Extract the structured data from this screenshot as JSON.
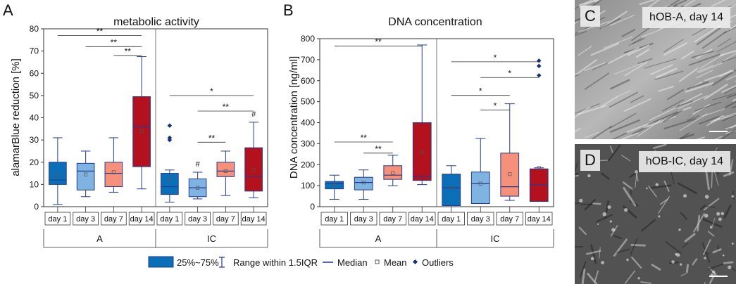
{
  "colors": {
    "day1": "#0b6fb8",
    "day3": "#7fb4e2",
    "day7": "#f5917a",
    "day14": "#b3111d",
    "whisker": "#243a8f",
    "outlier": "#17317c"
  },
  "legend": {
    "box_label": "25%~75%",
    "range_label": "Range within 1.5IQR",
    "median_label": "Median",
    "mean_label": "Mean",
    "outliers_label": "Outliers"
  },
  "microscopy": {
    "C": {
      "letter": "C",
      "label": "hOB-A, day 14"
    },
    "D": {
      "letter": "D",
      "label": "hOB-IC, day 14"
    }
  },
  "chart_data": [
    {
      "panel": "A",
      "type": "box",
      "title": "metabolic activity",
      "ylabel": "alamarBlue reduction [%]",
      "xlabel": "",
      "ylim": [
        0,
        80
      ],
      "yticks": [
        0,
        10,
        20,
        30,
        40,
        50,
        60,
        70,
        80
      ],
      "groups": [
        "A",
        "IC"
      ],
      "days": [
        "day 1",
        "day 3",
        "day 7",
        "day 14"
      ],
      "boxes": [
        {
          "group": 0,
          "day": 0,
          "q1": 10,
          "q3": 20,
          "median": 12,
          "mean": 14,
          "whisker_low": 1,
          "whisker_high": 31,
          "outliers": []
        },
        {
          "group": 0,
          "day": 1,
          "q1": 7.5,
          "q3": 19.5,
          "median": 16,
          "mean": 14.5,
          "whisker_low": 4.5,
          "whisker_high": 25,
          "outliers": []
        },
        {
          "group": 0,
          "day": 2,
          "q1": 9,
          "q3": 20,
          "median": 15,
          "mean": 15.5,
          "whisker_low": 6.5,
          "whisker_high": 31,
          "outliers": []
        },
        {
          "group": 0,
          "day": 3,
          "q1": 18,
          "q3": 49.5,
          "median": 36,
          "mean": 34,
          "whisker_low": 8,
          "whisker_high": 67.5,
          "outliers": []
        },
        {
          "group": 1,
          "day": 0,
          "q1": 5.5,
          "q3": 15,
          "median": 9,
          "mean": 12.5,
          "whisker_low": 2,
          "whisker_high": 16.5,
          "outliers": [
            36.5,
            31,
            30
          ]
        },
        {
          "group": 1,
          "day": 1,
          "q1": 4.5,
          "q3": 12.5,
          "median": 8.5,
          "mean": 8.5,
          "whisker_low": 3.5,
          "whisker_high": 15.5,
          "outliers": []
        },
        {
          "group": 1,
          "day": 2,
          "q1": 13.5,
          "q3": 20,
          "median": 16,
          "mean": 16,
          "whisker_low": 5,
          "whisker_high": 25,
          "outliers": []
        },
        {
          "group": 1,
          "day": 3,
          "q1": 7,
          "q3": 26.5,
          "median": 13.5,
          "mean": 16.5,
          "whisker_low": 4,
          "whisker_high": 38,
          "outliers": []
        }
      ],
      "significance": [
        {
          "from": [
            0,
            0
          ],
          "to": [
            0,
            3
          ],
          "y": 77,
          "label": "**"
        },
        {
          "from": [
            0,
            1
          ],
          "to": [
            0,
            3
          ],
          "y": 72,
          "label": "**"
        },
        {
          "from": [
            0,
            2
          ],
          "to": [
            0,
            3
          ],
          "y": 68,
          "label": "**"
        },
        {
          "from": [
            1,
            0
          ],
          "to": [
            1,
            3
          ],
          "y": 50,
          "label": "*"
        },
        {
          "from": [
            1,
            1
          ],
          "to": [
            1,
            3
          ],
          "y": 43,
          "label": "**"
        },
        {
          "from": [
            1,
            1
          ],
          "to": [
            1,
            2
          ],
          "y": 29,
          "label": "**"
        }
      ],
      "hash_marks": [
        {
          "group": 1,
          "day": 1,
          "y": 18,
          "label": "#"
        },
        {
          "group": 1,
          "day": 3,
          "y": 40.5,
          "label": "#"
        }
      ]
    },
    {
      "panel": "B",
      "type": "box",
      "title": "DNA concentration",
      "ylabel": "DNA concentration [ng/ml]",
      "xlabel": "",
      "ylim": [
        0,
        800
      ],
      "yticks": [
        0,
        100,
        200,
        300,
        400,
        500,
        600,
        700,
        800
      ],
      "groups": [
        "A",
        "IC"
      ],
      "days": [
        "day 1",
        "day 3",
        "day 7",
        "day 14"
      ],
      "boxes": [
        {
          "group": 0,
          "day": 0,
          "q1": 85,
          "q3": 120,
          "median": 110,
          "mean": 105,
          "whisker_low": 35,
          "whisker_high": 150,
          "outliers": []
        },
        {
          "group": 0,
          "day": 1,
          "q1": 80,
          "q3": 140,
          "median": 115,
          "mean": 115,
          "whisker_low": 35,
          "whisker_high": 175,
          "outliers": []
        },
        {
          "group": 0,
          "day": 2,
          "q1": 130,
          "q3": 195,
          "median": 150,
          "mean": 160,
          "whisker_low": 100,
          "whisker_high": 245,
          "outliers": []
        },
        {
          "group": 0,
          "day": 3,
          "q1": 125,
          "q3": 400,
          "median": 145,
          "mean": 260,
          "whisker_low": 105,
          "whisker_high": 770,
          "outliers": []
        },
        {
          "group": 1,
          "day": 0,
          "q1": 5,
          "q3": 155,
          "median": 90,
          "mean": 90,
          "whisker_low": 5,
          "whisker_high": 195,
          "outliers": []
        },
        {
          "group": 1,
          "day": 1,
          "q1": 15,
          "q3": 165,
          "median": 110,
          "mean": 110,
          "whisker_low": 15,
          "whisker_high": 325,
          "outliers": []
        },
        {
          "group": 1,
          "day": 2,
          "q1": 50,
          "q3": 255,
          "median": 95,
          "mean": 155,
          "whisker_low": 30,
          "whisker_high": 490,
          "outliers": []
        },
        {
          "group": 1,
          "day": 3,
          "q1": 25,
          "q3": 180,
          "median": 105,
          "mean": 185,
          "whisker_low": 25,
          "whisker_high": 185,
          "outliers": [
            695,
            670,
            625
          ]
        }
      ],
      "significance": [
        {
          "from": [
            0,
            0
          ],
          "to": [
            0,
            3
          ],
          "y": 765,
          "label": "**"
        },
        {
          "from": [
            0,
            0
          ],
          "to": [
            0,
            2
          ],
          "y": 308,
          "label": "**"
        },
        {
          "from": [
            0,
            1
          ],
          "to": [
            0,
            2
          ],
          "y": 255,
          "label": "**"
        },
        {
          "from": [
            1,
            0
          ],
          "to": [
            1,
            3
          ],
          "y": 690,
          "label": "*"
        },
        {
          "from": [
            1,
            1
          ],
          "to": [
            1,
            3
          ],
          "y": 615,
          "label": "*"
        },
        {
          "from": [
            1,
            0
          ],
          "to": [
            1,
            2
          ],
          "y": 530,
          "label": "*"
        },
        {
          "from": [
            1,
            1
          ],
          "to": [
            1,
            2
          ],
          "y": 460,
          "label": "*"
        }
      ],
      "hash_marks": []
    }
  ]
}
